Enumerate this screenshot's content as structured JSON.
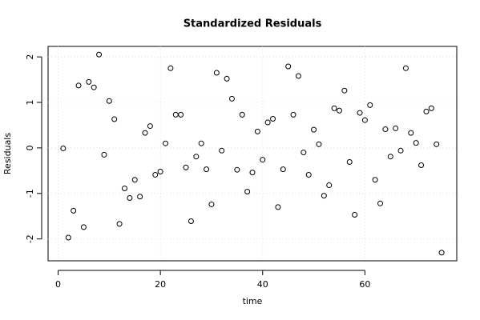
{
  "chart_data": {
    "type": "scatter",
    "title": "Standardized Residuals",
    "xlabel": "time",
    "ylabel": "Residuals",
    "x": [
      1,
      2,
      3,
      4,
      5,
      6,
      7,
      8,
      9,
      10,
      11,
      12,
      13,
      14,
      15,
      16,
      17,
      18,
      19,
      20,
      21,
      22,
      23,
      24,
      25,
      26,
      27,
      28,
      29,
      30,
      31,
      32,
      33,
      34,
      35,
      36,
      37,
      38,
      39,
      40,
      41,
      42,
      43,
      44,
      45,
      46,
      47,
      48,
      49,
      50,
      51,
      52,
      53,
      54,
      55,
      56,
      57,
      58,
      59,
      60,
      61,
      62,
      63,
      64,
      65,
      66,
      67,
      68,
      69,
      70,
      71,
      72,
      73,
      74,
      75
    ],
    "y": [
      -0.01,
      -1.97,
      -1.38,
      1.37,
      -1.74,
      1.45,
      1.33,
      2.05,
      -0.15,
      1.03,
      0.63,
      -1.67,
      -0.89,
      -1.1,
      -0.7,
      -1.07,
      0.33,
      0.48,
      -0.59,
      -0.52,
      0.1,
      1.75,
      0.73,
      0.73,
      -0.43,
      -1.61,
      -0.19,
      0.1,
      -0.47,
      -1.24,
      1.65,
      -0.06,
      1.52,
      1.08,
      -0.48,
      0.73,
      -0.96,
      -0.54,
      0.36,
      -0.26,
      0.56,
      0.64,
      -1.3,
      -0.47,
      1.79,
      0.73,
      1.58,
      -0.1,
      -0.59,
      0.4,
      0.08,
      -1.05,
      -0.82,
      0.87,
      0.82,
      1.26,
      -0.31,
      -1.47,
      0.77,
      0.61,
      0.94,
      -0.7,
      -1.22,
      0.41,
      -0.19,
      0.43,
      -0.06,
      1.75,
      0.33,
      0.11,
      -0.38,
      0.8,
      0.87,
      0.08,
      -2.3
    ],
    "color": "#000000",
    "xlim": [
      -1.96,
      77.96
    ],
    "ylim": [
      -2.48,
      2.23
    ],
    "xticks": [
      0,
      20,
      40,
      60
    ],
    "yticks": [
      -2,
      -1,
      0,
      1,
      2
    ],
    "grid": true
  }
}
